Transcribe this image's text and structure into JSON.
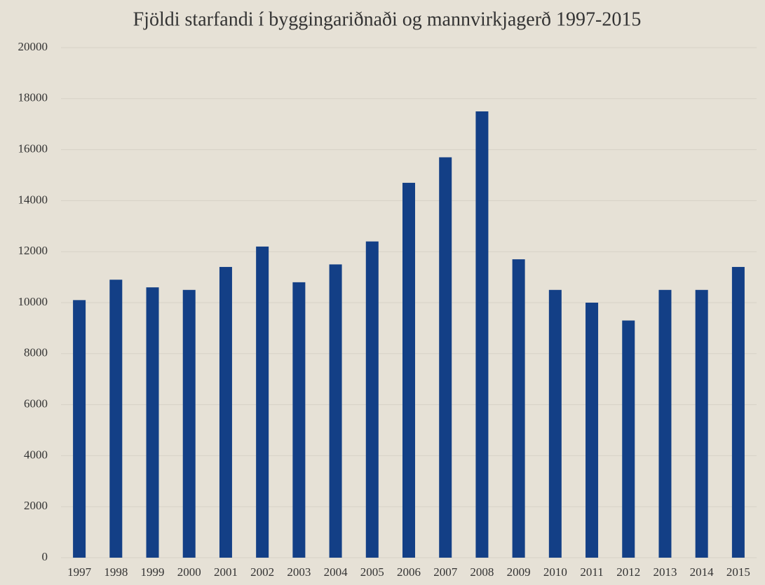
{
  "chart_data": {
    "type": "bar",
    "title": "Fjöldi starfandi í byggingariðnaði og mannvirkjagerð 1997-2015",
    "categories": [
      "1997",
      "1998",
      "1999",
      "2000",
      "2001",
      "2002",
      "2003",
      "2004",
      "2005",
      "2006",
      "2007",
      "2008",
      "2009",
      "2010",
      "2011",
      "2012",
      "2013",
      "2014",
      "2015"
    ],
    "values": [
      10100,
      10900,
      10600,
      10500,
      11400,
      12200,
      10800,
      11500,
      12400,
      14700,
      15700,
      17500,
      11700,
      10500,
      10000,
      9300,
      10500,
      10500,
      11400
    ],
    "color": "#133f86",
    "ylim": [
      0,
      20000
    ],
    "yticks": [
      0,
      2000,
      4000,
      6000,
      8000,
      10000,
      12000,
      14000,
      16000,
      18000,
      20000
    ],
    "grid": true
  }
}
